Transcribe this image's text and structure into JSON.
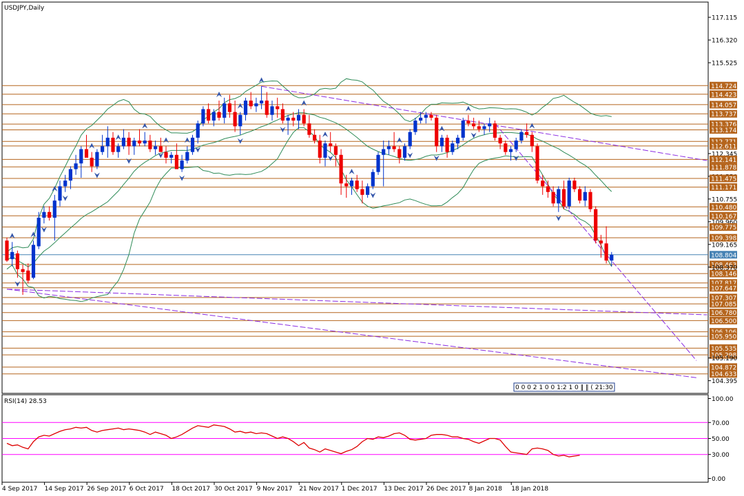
{
  "chart_data": [
    {
      "type": "candlestick",
      "title": "USDJPY,Daily",
      "y_ticks": [
        "117.115",
        "116.320",
        "115.525",
        "114.724",
        "114.423",
        "114.057",
        "113.737",
        "113.376",
        "113.174",
        "112.771",
        "112.611",
        "112.345",
        "112.141",
        "111.878",
        "111.550",
        "111.475",
        "111.171",
        "110.755",
        "110.480",
        "110.167",
        "109.960",
        "109.775",
        "109.398",
        "109.165",
        "108.804",
        "108.463",
        "108.370",
        "108.146",
        "107.817",
        "107.647",
        "107.307",
        "107.085",
        "106.780",
        "106.500",
        "106.106",
        "105.950",
        "105.535",
        "105.298",
        "105.190",
        "104.872",
        "104.633",
        "104.395"
      ],
      "boxed_levels": [
        "114.724",
        "114.423",
        "114.057",
        "113.737",
        "113.376",
        "113.174",
        "112.771",
        "112.611",
        "112.141",
        "111.878",
        "111.475",
        "111.171",
        "110.480",
        "110.167",
        "109.775",
        "109.398",
        "108.804",
        "108.463",
        "108.146",
        "107.817",
        "107.647",
        "107.307",
        "107.085",
        "106.780",
        "106.500",
        "106.106",
        "105.950",
        "105.535",
        "105.298",
        "104.872",
        "104.633"
      ],
      "current_price": "108.804",
      "ylim": [
        104.0,
        117.6
      ],
      "grid": false,
      "overlay": "Bollinger Bands",
      "time_box": "0 0 0 2 1 0 0 1:2 1 0 ‖ ‖ ( 21:30",
      "candles": [
        [
          109.3,
          109.4,
          108.55,
          108.6
        ],
        [
          108.65,
          109.25,
          108.4,
          108.9
        ],
        [
          108.85,
          108.95,
          108.0,
          108.3
        ],
        [
          108.3,
          108.45,
          107.4,
          108.2
        ],
        [
          108.25,
          108.5,
          107.8,
          107.9
        ],
        [
          108.0,
          109.3,
          107.95,
          109.15
        ],
        [
          109.1,
          110.3,
          109.0,
          110.1
        ],
        [
          110.1,
          110.5,
          109.9,
          110.3
        ],
        [
          110.3,
          110.5,
          110.0,
          110.1
        ],
        [
          110.1,
          110.9,
          109.3,
          110.7
        ],
        [
          110.7,
          111.4,
          110.5,
          111.2
        ],
        [
          111.2,
          111.6,
          111.0,
          111.4
        ],
        [
          111.4,
          111.9,
          111.1,
          111.8
        ],
        [
          111.8,
          112.3,
          111.6,
          112.0
        ],
        [
          112.0,
          112.6,
          111.5,
          112.5
        ],
        [
          112.5,
          113.0,
          112.3,
          112.2
        ],
        [
          112.2,
          112.4,
          111.7,
          111.9
        ],
        [
          111.9,
          112.5,
          111.8,
          112.4
        ],
        [
          112.4,
          113.0,
          112.3,
          112.6
        ],
        [
          112.6,
          113.3,
          112.2,
          112.9
        ],
        [
          112.9,
          113.1,
          112.3,
          112.4
        ],
        [
          112.4,
          112.7,
          112.2,
          112.6
        ],
        [
          112.6,
          113.2,
          112.5,
          112.9
        ],
        [
          112.9,
          113.1,
          112.3,
          112.6
        ],
        [
          112.6,
          112.9,
          112.3,
          112.8
        ],
        [
          112.8,
          113.2,
          112.6,
          112.7
        ],
        [
          112.7,
          113.1,
          112.6,
          112.8
        ],
        [
          112.8,
          113.0,
          112.4,
          112.5
        ],
        [
          112.5,
          112.8,
          112.3,
          112.6
        ],
        [
          112.6,
          112.9,
          112.5,
          112.4
        ],
        [
          112.4,
          112.6,
          112.0,
          112.2
        ],
        [
          112.2,
          112.4,
          112.0,
          112.3
        ],
        [
          112.3,
          112.7,
          111.8,
          111.8
        ],
        [
          111.8,
          112.3,
          111.7,
          112.1
        ],
        [
          112.1,
          112.6,
          112.0,
          112.4
        ],
        [
          112.4,
          113.0,
          112.3,
          112.9
        ],
        [
          112.9,
          113.5,
          112.7,
          113.4
        ],
        [
          113.4,
          114.0,
          113.3,
          113.9
        ],
        [
          113.9,
          114.1,
          113.4,
          113.5
        ],
        [
          113.5,
          113.9,
          113.3,
          113.8
        ],
        [
          113.8,
          114.2,
          113.5,
          113.6
        ],
        [
          113.6,
          114.3,
          113.4,
          114.1
        ],
        [
          114.1,
          114.4,
          113.6,
          113.8
        ],
        [
          113.8,
          114.2,
          113.1,
          113.3
        ],
        [
          113.3,
          113.8,
          113.0,
          113.7
        ],
        [
          113.7,
          114.3,
          113.5,
          114.2
        ],
        [
          114.2,
          114.5,
          113.9,
          114.0
        ],
        [
          114.0,
          114.3,
          113.8,
          114.1
        ],
        [
          114.1,
          114.7,
          113.9,
          114.2
        ],
        [
          114.2,
          114.5,
          113.6,
          113.7
        ],
        [
          113.7,
          114.2,
          113.5,
          114.0
        ],
        [
          114.0,
          114.3,
          113.6,
          113.9
        ],
        [
          113.9,
          114.1,
          113.4,
          113.5
        ],
        [
          113.5,
          113.7,
          113.0,
          113.6
        ],
        [
          113.6,
          113.8,
          113.3,
          113.5
        ],
        [
          113.5,
          113.9,
          113.2,
          113.7
        ],
        [
          113.7,
          113.9,
          113.3,
          113.4
        ],
        [
          113.4,
          113.7,
          112.9,
          113.0
        ],
        [
          113.0,
          113.2,
          112.7,
          112.8
        ],
        [
          112.8,
          113.0,
          112.0,
          112.2
        ],
        [
          112.2,
          112.8,
          111.9,
          112.7
        ],
        [
          112.7,
          113.1,
          112.4,
          112.6
        ],
        [
          112.6,
          112.7,
          111.9,
          112.3
        ],
        [
          112.3,
          112.5,
          110.9,
          111.3
        ],
        [
          111.3,
          111.6,
          110.8,
          111.2
        ],
        [
          111.2,
          111.5,
          110.9,
          111.4
        ],
        [
          111.4,
          111.6,
          111.0,
          111.1
        ],
        [
          111.1,
          111.4,
          110.6,
          110.9
        ],
        [
          110.9,
          111.3,
          110.8,
          111.2
        ],
        [
          111.2,
          111.8,
          111.1,
          111.7
        ],
        [
          111.7,
          112.4,
          111.6,
          112.3
        ],
        [
          112.3,
          112.8,
          111.2,
          112.5
        ],
        [
          112.5,
          112.8,
          112.3,
          112.6
        ],
        [
          112.6,
          113.1,
          112.4,
          112.5
        ],
        [
          112.5,
          112.6,
          112.0,
          112.2
        ],
        [
          112.2,
          112.7,
          112.1,
          112.6
        ],
        [
          112.6,
          113.2,
          112.5,
          113.1
        ],
        [
          113.1,
          113.6,
          113.0,
          113.5
        ],
        [
          113.5,
          113.8,
          113.4,
          113.6
        ],
        [
          113.6,
          113.8,
          113.4,
          113.7
        ],
        [
          113.7,
          113.8,
          113.5,
          113.6
        ],
        [
          113.6,
          113.7,
          112.4,
          112.6
        ],
        [
          112.6,
          113.0,
          112.4,
          112.9
        ],
        [
          112.9,
          113.0,
          112.2,
          112.4
        ],
        [
          112.4,
          112.8,
          112.3,
          112.7
        ],
        [
          112.7,
          113.0,
          112.5,
          112.9
        ],
        [
          112.9,
          113.6,
          112.8,
          113.5
        ],
        [
          113.5,
          113.7,
          113.3,
          113.4
        ],
        [
          113.4,
          113.6,
          113.2,
          113.3
        ],
        [
          113.3,
          113.5,
          113.1,
          113.2
        ],
        [
          113.2,
          113.4,
          113.0,
          113.3
        ],
        [
          113.3,
          113.6,
          113.1,
          113.4
        ],
        [
          113.4,
          113.5,
          112.8,
          112.9
        ],
        [
          112.9,
          113.0,
          112.5,
          112.7
        ],
        [
          112.7,
          112.8,
          112.3,
          112.4
        ],
        [
          112.4,
          112.6,
          112.1,
          112.5
        ],
        [
          112.5,
          112.9,
          112.4,
          112.8
        ],
        [
          112.8,
          113.2,
          112.7,
          113.1
        ],
        [
          113.1,
          113.4,
          112.9,
          113.0
        ],
        [
          113.0,
          113.1,
          112.4,
          112.6
        ],
        [
          112.6,
          112.7,
          111.3,
          111.4
        ],
        [
          111.4,
          111.6,
          110.9,
          111.2
        ],
        [
          111.2,
          111.4,
          110.8,
          111.0
        ],
        [
          111.0,
          111.2,
          110.5,
          110.6
        ],
        [
          110.6,
          111.2,
          110.3,
          111.1
        ],
        [
          111.1,
          111.4,
          110.4,
          110.5
        ],
        [
          110.5,
          111.5,
          110.4,
          111.4
        ],
        [
          111.4,
          111.5,
          111.0,
          111.1
        ],
        [
          111.1,
          111.2,
          110.6,
          110.7
        ],
        [
          110.7,
          111.2,
          110.5,
          111.0
        ],
        [
          111.0,
          111.1,
          110.3,
          110.4
        ],
        [
          110.4,
          110.5,
          109.2,
          109.3
        ],
        [
          109.3,
          109.5,
          108.7,
          109.2
        ],
        [
          109.2,
          109.8,
          108.5,
          108.6
        ],
        [
          108.6,
          108.9,
          108.4,
          108.8
        ]
      ],
      "pivot_highs": [
        1,
        5,
        9,
        16,
        21,
        26,
        30,
        34,
        40,
        44,
        48,
        56,
        60,
        65,
        74,
        82,
        87,
        99
      ],
      "pivot_lows": [
        2,
        7,
        11,
        17,
        23,
        29,
        33,
        36,
        44,
        52,
        61,
        69,
        76,
        81,
        88,
        96,
        104
      ]
    },
    {
      "type": "line",
      "title": "RSI(14) 28.53",
      "y_ticks": [
        "100.00",
        "70.00",
        "50.00",
        "30.00",
        "0.00"
      ],
      "levels": [
        70,
        50,
        30
      ],
      "ylim": [
        -3,
        103
      ],
      "x_tick_labels": [
        "4 Sep 2017",
        "14 Sep 2017",
        "26 Sep 2017",
        "6 Oct 2017",
        "18 Oct 2017",
        "30 Oct 2017",
        "9 Nov 2017",
        "21 Nov 2017",
        "1 Dec 2017",
        "13 Dec 2017",
        "26 Dec 2017",
        "8 Jan 2018",
        "18 Jan 2018"
      ],
      "x_tick_index": [
        0,
        8,
        16,
        24,
        32,
        40,
        48,
        56,
        64,
        72,
        80,
        88,
        96
      ],
      "values": [
        44,
        41,
        42,
        39,
        37,
        46,
        52,
        54,
        53,
        56,
        59,
        61,
        62,
        64,
        63,
        64,
        60,
        58,
        60,
        61,
        62,
        63,
        61,
        62,
        61,
        60,
        58,
        55,
        58,
        56,
        54,
        50,
        52,
        55,
        59,
        63,
        66,
        65,
        64,
        67,
        66,
        65,
        62,
        58,
        59,
        57,
        58,
        56,
        57,
        56,
        53,
        50,
        52,
        50,
        46,
        41,
        45,
        38,
        36,
        33,
        37,
        35,
        33,
        31,
        34,
        36,
        40,
        46,
        50,
        49,
        52,
        51,
        53,
        56,
        57,
        54,
        49,
        48,
        49,
        50,
        54,
        55,
        55,
        54,
        52,
        52,
        50,
        49,
        46,
        44,
        47,
        50,
        50,
        48,
        40,
        33,
        32,
        31,
        30,
        37,
        38,
        37,
        35,
        30,
        28,
        29,
        27,
        28,
        29
      ]
    }
  ],
  "colors": {
    "bull": "#0033cc",
    "bear": "#ee0000",
    "level_line": "#b5651d",
    "level_box": "#b5651d",
    "current_box": "#4682b4",
    "bands": "#2e8b57",
    "trend": "#8a2be2",
    "rsi_line": "#dd0000",
    "rsi_level": "#ff00ff",
    "fractal": "#3355aa"
  }
}
